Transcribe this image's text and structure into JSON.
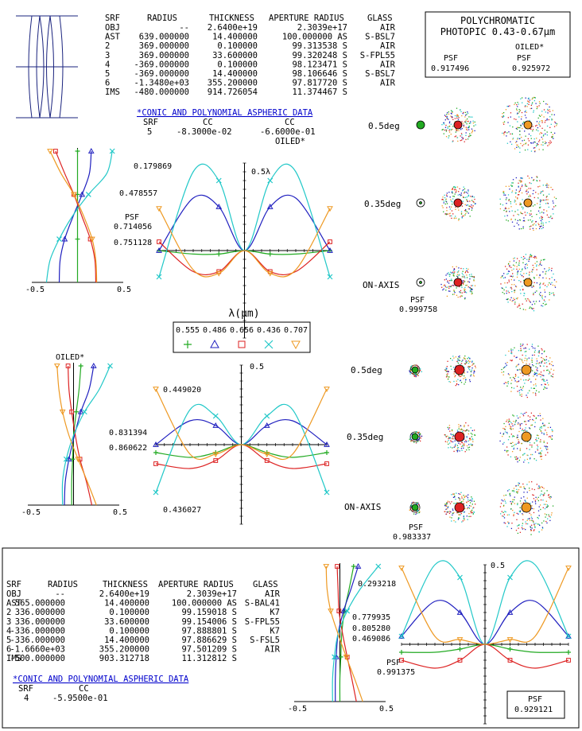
{
  "prescription_headers": [
    "SRF",
    "RADIUS",
    "THICKNESS",
    "APERTURE RADIUS",
    "GLASS"
  ],
  "lens_top": {
    "rows": [
      [
        "OBJ",
        "--",
        "2.6400e+19",
        "2.3039e+17",
        "AIR"
      ],
      [
        "AST",
        "639.000000",
        "14.400000",
        "100.000000 AS",
        "S-BSL7"
      ],
      [
        "2",
        "369.000000",
        "0.100000",
        "99.313538 S",
        "AIR"
      ],
      [
        "3",
        "369.000000",
        "33.600000",
        "99.320248 S",
        "S-FPL55"
      ],
      [
        "4",
        "-369.000000",
        "0.100000",
        "98.123471 S",
        "AIR"
      ],
      [
        "5",
        "-369.000000",
        "14.400000",
        "98.106646 S",
        "S-BSL7"
      ],
      [
        "6",
        "-1.3480e+03",
        "355.200000",
        "97.817720 S",
        "AIR"
      ],
      [
        "IMS",
        "-480.000000",
        "914.726054",
        "11.374467 S",
        ""
      ]
    ],
    "asph_title": "*CONIC AND POLYNOMIAL ASPHERIC DATA",
    "asph_headers": [
      "SRF",
      "CC",
      "CC"
    ],
    "asph_rows": [
      [
        "5",
        "-8.3000e-02",
        "-6.6000e-01"
      ]
    ],
    "asph_note": "OILED*"
  },
  "poly_box": {
    "title1": "POLYCHROMATIC",
    "title2": "PHOTOPIC 0.43-0.67µm",
    "oiled": "OILED*",
    "psf_label": "PSF",
    "psf_left": "0.917496",
    "psf_right": "0.925972"
  },
  "legend": {
    "title": "λ(µm)",
    "wavelengths": [
      "0.555",
      "0.486",
      "0.656",
      "0.436",
      "0.707"
    ],
    "markers": [
      "plus",
      "triangle",
      "square",
      "cross",
      "down-triangle"
    ],
    "colors": [
      "#22aa22",
      "#1f1fbf",
      "#dd2222",
      "#22c8c8",
      "#ee9922"
    ]
  },
  "spots_top": {
    "fields": [
      "0.5deg",
      "0.35deg",
      "ON-AXIS"
    ],
    "psf_label": "PSF",
    "psf_value": "0.999758"
  },
  "spots_mid": {
    "fields": [
      "0.5deg",
      "0.35deg",
      "ON-AXIS"
    ],
    "psf_label": "PSF",
    "psf_value": "0.983337"
  },
  "oiled_mid": "OILED*",
  "lens_bottom": {
    "rows": [
      [
        "OBJ",
        "--",
        "2.6400e+19",
        "2.3039e+17",
        "AIR"
      ],
      [
        "AST",
        "565.000000",
        "14.400000",
        "100.000000 AS",
        "S-BAL41"
      ],
      [
        "2",
        "336.000000",
        "0.100000",
        "99.159018 S",
        "K7"
      ],
      [
        "3",
        "336.000000",
        "33.600000",
        "99.154006 S",
        "S-FPL55"
      ],
      [
        "4",
        "-336.000000",
        "0.100000",
        "97.888801 S",
        "K7"
      ],
      [
        "5",
        "-336.000000",
        "14.400000",
        "97.886629 S",
        "S-FSL5"
      ],
      [
        "6",
        "-1.6660e+03",
        "355.200000",
        "97.501209 S",
        "AIR"
      ],
      [
        "IMS",
        "-500.000000",
        "903.312718",
        "11.312812 S",
        ""
      ]
    ],
    "asph_title": "*CONIC AND POLYNOMIAL ASPHERIC DATA",
    "asph_headers": [
      "SRF",
      "CC"
    ],
    "asph_rows": [
      [
        "4",
        "-5.9500e-01"
      ]
    ],
    "psf_box_label": "PSF",
    "psf_box_value": "0.929121"
  },
  "chart_data": [
    {
      "type": "line",
      "name": "top-spherical",
      "xlim": [
        -0.5,
        0.5
      ],
      "xtick_labels": [
        "-0.5",
        "0.5"
      ],
      "series": [
        {
          "wavelength": "0.555",
          "x": [
            0.0,
            0.0,
            0.0,
            0.0,
            0.0,
            0.0,
            0.0
          ],
          "y": [
            0.0,
            0.17,
            0.33,
            0.5,
            0.67,
            0.83,
            1.0
          ]
        },
        {
          "wavelength": "0.486",
          "x": [
            -0.2,
            -0.19,
            -0.14,
            -0.05,
            0.05,
            0.13,
            0.15
          ],
          "y": [
            0.0,
            0.17,
            0.33,
            0.5,
            0.67,
            0.83,
            1.0
          ]
        },
        {
          "wavelength": "0.656",
          "x": [
            0.2,
            0.19,
            0.14,
            0.05,
            -0.04,
            -0.14,
            -0.24
          ],
          "y": [
            0.0,
            0.17,
            0.33,
            0.5,
            0.67,
            0.83,
            1.0
          ]
        },
        {
          "wavelength": "0.436",
          "x": [
            -0.34,
            -0.3,
            -0.2,
            -0.06,
            0.12,
            0.32,
            0.38
          ],
          "y": [
            0.0,
            0.17,
            0.33,
            0.5,
            0.67,
            0.83,
            1.0
          ]
        },
        {
          "wavelength": "0.707",
          "x": [
            0.21,
            0.2,
            0.16,
            0.07,
            -0.04,
            -0.18,
            -0.3
          ],
          "y": [
            0.0,
            0.17,
            0.33,
            0.5,
            0.67,
            0.83,
            1.0
          ]
        }
      ]
    },
    {
      "type": "line",
      "name": "top-opd",
      "ylabel": "0.5λ",
      "psf_label": "PSF",
      "psf_values": [
        "0.179869",
        "0.478557",
        "0.714056",
        "0.751128"
      ],
      "series": [
        {
          "wavelength": "0.555",
          "x": [
            -1.0,
            -0.6,
            -0.3,
            0.0,
            0.3,
            0.6,
            1.0
          ],
          "y": [
            0.0,
            -0.02,
            -0.02,
            0.0,
            -0.02,
            -0.02,
            0.0
          ]
        },
        {
          "wavelength": "0.486",
          "x": [
            -1.0,
            -0.6,
            -0.3,
            0.0,
            0.3,
            0.6,
            1.0
          ],
          "y": [
            0.0,
            0.3,
            0.25,
            0.0,
            0.25,
            0.3,
            0.0
          ]
        },
        {
          "wavelength": "0.656",
          "x": [
            -1.0,
            -0.6,
            -0.3,
            0.0,
            0.3,
            0.6,
            1.0
          ],
          "y": [
            0.05,
            -0.12,
            -0.12,
            0.0,
            -0.12,
            -0.12,
            0.05
          ]
        },
        {
          "wavelength": "0.436",
          "x": [
            -1.0,
            -0.6,
            -0.3,
            0.0,
            0.3,
            0.6,
            1.0
          ],
          "y": [
            -0.15,
            0.45,
            0.4,
            0.0,
            0.4,
            0.45,
            -0.15
          ]
        },
        {
          "wavelength": "0.707",
          "x": [
            -1.0,
            -0.6,
            -0.3,
            0.0,
            0.3,
            0.6,
            1.0
          ],
          "y": [
            0.24,
            -0.11,
            -0.13,
            0.0,
            -0.13,
            -0.11,
            0.24
          ]
        }
      ]
    },
    {
      "type": "line",
      "name": "mid-spherical",
      "xlim": [
        -0.5,
        0.5
      ],
      "xtick_labels": [
        "-0.5",
        "0.5"
      ],
      "series": [
        {
          "wavelength": "0.555",
          "x": [
            -0.02,
            -0.02,
            -0.01,
            0.0,
            0.03,
            0.06,
            0.08
          ],
          "y": [
            0.0,
            0.17,
            0.33,
            0.5,
            0.67,
            0.83,
            1.0
          ]
        },
        {
          "wavelength": "0.486",
          "x": [
            -0.1,
            -0.09,
            -0.05,
            0.01,
            0.08,
            0.17,
            0.22
          ],
          "y": [
            0.0,
            0.17,
            0.33,
            0.5,
            0.67,
            0.83,
            1.0
          ]
        },
        {
          "wavelength": "0.656",
          "x": [
            0.2,
            0.14,
            0.07,
            0.02,
            -0.02,
            -0.05,
            -0.06
          ],
          "y": [
            0.0,
            0.17,
            0.33,
            0.5,
            0.67,
            0.83,
            1.0
          ]
        },
        {
          "wavelength": "0.436",
          "x": [
            -0.12,
            -0.12,
            -0.08,
            0.0,
            0.12,
            0.28,
            0.4
          ],
          "y": [
            0.0,
            0.17,
            0.33,
            0.5,
            0.67,
            0.83,
            1.0
          ]
        },
        {
          "wavelength": "0.707",
          "x": [
            0.25,
            0.15,
            0.05,
            -0.05,
            -0.12,
            -0.16,
            -0.18
          ],
          "y": [
            0.0,
            0.17,
            0.33,
            0.5,
            0.67,
            0.83,
            1.0
          ]
        }
      ]
    },
    {
      "type": "line",
      "name": "mid-opd",
      "ylabel": "0.5",
      "psf_values": [
        "0.449020",
        "0.831394",
        "0.860622",
        "0.436027"
      ],
      "series": [
        {
          "wavelength": "0.555",
          "x": [
            -1.0,
            -0.6,
            -0.3,
            0.0,
            0.3,
            0.6,
            1.0
          ],
          "y": [
            -0.05,
            -0.08,
            -0.05,
            0.0,
            -0.05,
            -0.08,
            -0.05
          ]
        },
        {
          "wavelength": "0.486",
          "x": [
            -1.0,
            -0.6,
            -0.3,
            0.0,
            0.3,
            0.6,
            1.0
          ],
          "y": [
            0.0,
            0.15,
            0.12,
            0.0,
            0.12,
            0.15,
            0.0
          ]
        },
        {
          "wavelength": "0.656",
          "x": [
            -1.0,
            -0.6,
            -0.3,
            0.0,
            0.3,
            0.6,
            1.0
          ],
          "y": [
            -0.12,
            -0.15,
            -0.1,
            0.0,
            -0.1,
            -0.15,
            -0.12
          ]
        },
        {
          "wavelength": "0.436",
          "x": [
            -1.0,
            -0.6,
            -0.3,
            0.0,
            0.3,
            0.6,
            1.0
          ],
          "y": [
            -0.3,
            0.22,
            0.18,
            0.0,
            0.18,
            0.22,
            -0.3
          ]
        },
        {
          "wavelength": "0.707",
          "x": [
            -1.0,
            -0.6,
            -0.3,
            0.0,
            0.3,
            0.6,
            1.0
          ],
          "y": [
            0.35,
            -0.06,
            -0.06,
            0.0,
            -0.06,
            -0.06,
            0.35
          ]
        }
      ]
    },
    {
      "type": "line",
      "name": "bottom-spherical",
      "xlim": [
        -0.5,
        0.5
      ],
      "xtick_labels": [
        "-0.5",
        "0.5"
      ],
      "series": [
        {
          "wavelength": "0.555",
          "x": [
            0.0,
            0.0,
            0.01,
            0.02,
            0.05,
            0.1,
            0.15
          ],
          "y": [
            0.0,
            0.17,
            0.33,
            0.5,
            0.67,
            0.83,
            1.0
          ]
        },
        {
          "wavelength": "0.486",
          "x": [
            -0.05,
            -0.05,
            -0.04,
            -0.02,
            0.04,
            0.12,
            0.2
          ],
          "y": [
            0.0,
            0.17,
            0.33,
            0.5,
            0.67,
            0.83,
            1.0
          ]
        },
        {
          "wavelength": "0.656",
          "x": [
            0.18,
            0.13,
            0.08,
            0.03,
            -0.01,
            -0.02,
            -0.03
          ],
          "y": [
            0.0,
            0.17,
            0.33,
            0.5,
            0.67,
            0.83,
            1.0
          ]
        },
        {
          "wavelength": "0.436",
          "x": [
            -0.08,
            -0.08,
            -0.06,
            -0.02,
            0.08,
            0.22,
            0.42
          ],
          "y": [
            0.0,
            0.17,
            0.33,
            0.5,
            0.67,
            0.83,
            1.0
          ]
        },
        {
          "wavelength": "0.707",
          "x": [
            0.25,
            0.16,
            0.07,
            -0.02,
            -0.1,
            -0.14,
            -0.15
          ],
          "y": [
            0.0,
            0.17,
            0.33,
            0.5,
            0.67,
            0.83,
            1.0
          ]
        }
      ]
    },
    {
      "type": "line",
      "name": "bottom-opd",
      "ylabel": "0.5",
      "psf_values": [
        "0.293218",
        "0.779935",
        "0.805280",
        "0.469086",
        "0.991375"
      ],
      "series": [
        {
          "wavelength": "0.555",
          "x": [
            -1.0,
            -0.6,
            -0.3,
            0.0,
            0.3,
            0.6,
            1.0
          ],
          "y": [
            -0.05,
            -0.05,
            -0.03,
            0.0,
            -0.03,
            -0.05,
            -0.05
          ]
        },
        {
          "wavelength": "0.486",
          "x": [
            -1.0,
            -0.6,
            -0.3,
            0.0,
            0.3,
            0.6,
            1.0
          ],
          "y": [
            0.05,
            0.27,
            0.2,
            0.0,
            0.2,
            0.27,
            0.05
          ]
        },
        {
          "wavelength": "0.656",
          "x": [
            -1.0,
            -0.6,
            -0.3,
            0.0,
            0.3,
            0.6,
            1.0
          ],
          "y": [
            -0.1,
            -0.15,
            -0.1,
            0.0,
            -0.1,
            -0.15,
            -0.1
          ]
        },
        {
          "wavelength": "0.436",
          "x": [
            -1.0,
            -0.6,
            -0.3,
            0.0,
            0.3,
            0.6,
            1.0
          ],
          "y": [
            0.05,
            0.5,
            0.42,
            0.0,
            0.42,
            0.5,
            0.05
          ]
        },
        {
          "wavelength": "0.707",
          "x": [
            -1.0,
            -0.6,
            -0.3,
            0.0,
            0.3,
            0.6,
            1.0
          ],
          "y": [
            0.48,
            0.05,
            0.03,
            0.0,
            0.03,
            0.05,
            0.48
          ]
        }
      ]
    }
  ]
}
